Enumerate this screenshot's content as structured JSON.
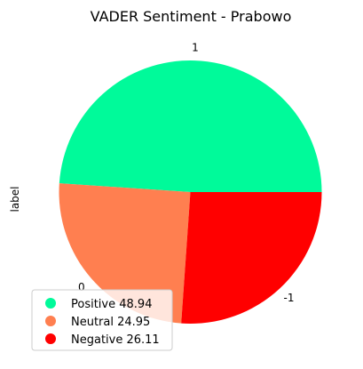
{
  "chart_data": {
    "type": "pie",
    "title": "VADER Sentiment - Prabowo",
    "ylabel": "label",
    "start_angle_deg": 0,
    "direction": "counterclockwise",
    "slices": [
      {
        "label": "1",
        "legend": "Positive 48.94",
        "value": 48.94,
        "color": "#00FA9A"
      },
      {
        "label": "0",
        "legend": "Neutral 24.95",
        "value": 24.95,
        "color": "#FF7F50"
      },
      {
        "label": "-1",
        "legend": "Negative 26.11",
        "value": 26.11,
        "color": "#FF0000"
      }
    ],
    "legend_position": "lower-left",
    "legend_order": [
      "1",
      "0",
      "-1"
    ]
  }
}
